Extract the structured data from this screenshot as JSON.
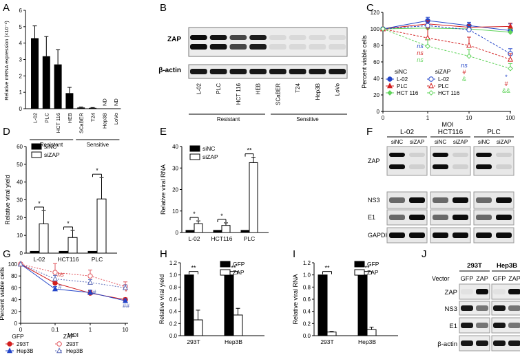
{
  "panel_letters": [
    "A",
    "B",
    "C",
    "D",
    "E",
    "F",
    "G",
    "H",
    "I",
    "J"
  ],
  "colors": {
    "black": "#000000",
    "L02_blue": "#2345c9",
    "PLC_red": "#d21e1e",
    "HCT_green": "#5fd35a",
    "pink": "#e2545c",
    "slate": "#5a6ab8"
  },
  "chart_data": [
    {
      "panel": "A",
      "type": "bar",
      "ylabel": "Relative mRNA expression (×10⁻³)",
      "ylim": [
        0,
        6
      ],
      "yticks": [
        "0",
        "1",
        "2",
        "3",
        "4",
        "5",
        "6"
      ],
      "categories": [
        "L-02",
        "PLC",
        "HCT 116",
        "HEB",
        "SCaBER",
        "T24",
        "Hep3B",
        "LoVo"
      ],
      "values": [
        4.3,
        3.2,
        2.7,
        0.95,
        0.07,
        0.05,
        0,
        0
      ],
      "errors": [
        0.75,
        1.2,
        0.9,
        0.35,
        0.03,
        0.02,
        0,
        0
      ],
      "annotations": [
        {
          "category": "Hep3B",
          "text": "ND"
        },
        {
          "category": "LoVo",
          "text": "ND"
        }
      ],
      "groups": [
        {
          "label": "Resistant",
          "from": 0,
          "to": 3
        },
        {
          "label": "Sensitive",
          "from": 4,
          "to": 7
        }
      ]
    },
    {
      "panel": "C",
      "type": "line",
      "ylabel": "Percent viable cells",
      "xlabel": "MOI",
      "x_ticks": [
        "0",
        "1",
        "10",
        "100"
      ],
      "ylim": [
        0,
        120
      ],
      "yticks": [
        "0",
        "20",
        "40",
        "60",
        "80",
        "100",
        "120"
      ],
      "legend_headers": [
        "siNC",
        "siZAP"
      ],
      "series": [
        {
          "name": "L-02",
          "group": "siNC",
          "values": [
            100,
            110,
            104,
            98
          ],
          "errors": [
            0,
            4,
            4,
            8
          ],
          "style": "solid",
          "marker": "circle-filled",
          "color": "#2345c9"
        },
        {
          "name": "PLC",
          "group": "siNC",
          "values": [
            100,
            106,
            102,
            103
          ],
          "errors": [
            0,
            4,
            3,
            4
          ],
          "style": "solid",
          "marker": "triangle-filled",
          "color": "#d21e1e"
        },
        {
          "name": "HCT 116",
          "group": "siNC",
          "values": [
            100,
            101,
            100,
            96
          ],
          "errors": [
            0,
            3,
            3,
            4
          ],
          "style": "solid",
          "marker": "diamond-filled",
          "color": "#5fd35a"
        },
        {
          "name": "L-02",
          "group": "siZAP",
          "values": [
            100,
            104,
            99,
            70
          ],
          "errors": [
            0,
            4,
            4,
            6
          ],
          "style": "dashed",
          "marker": "circle-open",
          "color": "#2345c9"
        },
        {
          "name": "PLC",
          "group": "siZAP",
          "values": [
            100,
            89,
            80,
            63
          ],
          "errors": [
            0,
            12,
            10,
            7
          ],
          "style": "dashed",
          "marker": "triangle-open",
          "color": "#d21e1e"
        },
        {
          "name": "HCT 116",
          "group": "siZAP",
          "values": [
            100,
            79,
            67,
            52
          ],
          "errors": [
            0,
            8,
            8,
            6
          ],
          "style": "dashed",
          "marker": "diamond-open",
          "color": "#5fd35a"
        }
      ],
      "annotations": {
        "moi1": [
          "ns",
          "ns",
          "ns"
        ],
        "moi10": [
          "ns",
          "#",
          "&"
        ],
        "moi100": [
          "*",
          "#",
          "&&"
        ]
      }
    },
    {
      "panel": "D",
      "type": "bar",
      "ylabel": "Relative viral yield",
      "ylim": [
        0,
        60
      ],
      "yticks": [
        "0",
        "10",
        "20",
        "30",
        "40",
        "50",
        "60"
      ],
      "categories": [
        "L-02",
        "HCT116",
        "PLC"
      ],
      "series": [
        {
          "name": "siNC",
          "values": [
            1,
            1,
            1
          ],
          "errors": [
            0,
            0,
            0
          ]
        },
        {
          "name": "siZAP",
          "values": [
            16.5,
            8.8,
            30.5
          ],
          "errors": [
            7.5,
            4,
            12
          ]
        }
      ],
      "significance": [
        "*",
        "*",
        "*"
      ]
    },
    {
      "panel": "E",
      "type": "bar",
      "ylabel": "Relative viral RNA",
      "ylim": [
        0,
        40
      ],
      "yticks": [
        "0",
        "10",
        "20",
        "30",
        "40"
      ],
      "categories": [
        "L-02",
        "HCT116",
        "PLC"
      ],
      "series": [
        {
          "name": "siNC",
          "values": [
            1,
            1,
            1
          ],
          "errors": [
            0,
            0,
            0
          ]
        },
        {
          "name": "siZAP",
          "values": [
            4.1,
            3.3,
            32.5
          ],
          "errors": [
            1.3,
            1.2,
            2.5
          ]
        }
      ],
      "significance": [
        "*",
        "*",
        "**"
      ]
    },
    {
      "panel": "G",
      "type": "line",
      "ylabel": "Percent viable cells",
      "xlabel": "MOI",
      "x_ticks": [
        "0",
        "0.1",
        "1",
        "10"
      ],
      "ylim": [
        0,
        100
      ],
      "yticks": [
        "0",
        "20",
        "40",
        "60",
        "80",
        "100"
      ],
      "legend_headers": [
        "GFP",
        "ZAP"
      ],
      "series": [
        {
          "name": "293T",
          "group": "GFP",
          "values": [
            100,
            68,
            51,
            40
          ],
          "errors": [
            0,
            4,
            4,
            3
          ],
          "style": "solid",
          "marker": "circle-filled",
          "color": "#d21e1e"
        },
        {
          "name": "Hep3B",
          "group": "GFP",
          "values": [
            100,
            58,
            52,
            38
          ],
          "errors": [
            0,
            4,
            4,
            3
          ],
          "style": "solid",
          "marker": "triangle-filled",
          "color": "#2345c9"
        },
        {
          "name": "293T",
          "group": "ZAP",
          "values": [
            100,
            86,
            80,
            62
          ],
          "errors": [
            0,
            15,
            10,
            8
          ],
          "style": "dotted",
          "marker": "circle-open",
          "color": "#e2545c"
        },
        {
          "name": "Hep3B",
          "group": "ZAP",
          "values": [
            100,
            75,
            69,
            60
          ],
          "errors": [
            0,
            6,
            5,
            5
          ],
          "style": "dotted",
          "marker": "triangle-open",
          "color": "#5a6ab8"
        }
      ],
      "annotations": {
        "x01": [
          "ns",
          "#"
        ],
        "x1": [
          "#"
        ],
        "x10": [
          "*",
          "##"
        ]
      }
    },
    {
      "panel": "H",
      "type": "bar",
      "ylabel": "Relative viral yield",
      "ylim": [
        0,
        1.2
      ],
      "yticks": [
        "0.0",
        "0.2",
        "0.4",
        "0.6",
        "0.8",
        "1.0",
        "1.2"
      ],
      "categories": [
        "293T",
        "Hep3B"
      ],
      "series": [
        {
          "name": "GFP",
          "values": [
            1,
            1
          ],
          "errors": [
            0,
            0
          ]
        },
        {
          "name": "ZAP",
          "values": [
            0.26,
            0.34
          ],
          "errors": [
            0.16,
            0.11
          ]
        }
      ],
      "significance": [
        "**",
        "**"
      ]
    },
    {
      "panel": "I",
      "type": "bar",
      "ylabel": "Relative viral RNA",
      "ylim": [
        0,
        1.2
      ],
      "yticks": [
        "0.0",
        "0.2",
        "0.4",
        "0.6",
        "0.8",
        "1.0",
        "1.2"
      ],
      "categories": [
        "293T",
        "Hep3B"
      ],
      "series": [
        {
          "name": "GFP",
          "values": [
            1,
            1
          ],
          "errors": [
            0,
            0
          ]
        },
        {
          "name": "ZAP",
          "values": [
            0.06,
            0.1
          ],
          "errors": [
            0.01,
            0.04
          ]
        }
      ],
      "significance": [
        "**",
        "**"
      ]
    }
  ],
  "blot_B": {
    "rows": [
      "ZAP",
      "β-actin"
    ],
    "lanes": [
      "L-02",
      "PLC",
      "HCT 116",
      "HEB",
      "SCaBER",
      "T24",
      "Hep3B",
      "LoVo"
    ],
    "groups": [
      "Resistant",
      "Sensitive"
    ]
  },
  "blot_F": {
    "cells": [
      "L-02",
      "HCT116",
      "PLC"
    ],
    "lanes": [
      "siNC",
      "siZAP",
      "siNC",
      "siZAP",
      "siNC",
      "siZAP"
    ],
    "rows": [
      "ZAP",
      "NS3",
      "E1",
      "GAPDH"
    ]
  },
  "blot_J": {
    "cells": [
      "293T",
      "Hep3B"
    ],
    "vector_label": "Vector",
    "lanes": [
      "GFP",
      "ZAP",
      "GFP",
      "ZAP"
    ],
    "rows": [
      "ZAP",
      "NS3",
      "E1",
      "β-actin"
    ]
  }
}
